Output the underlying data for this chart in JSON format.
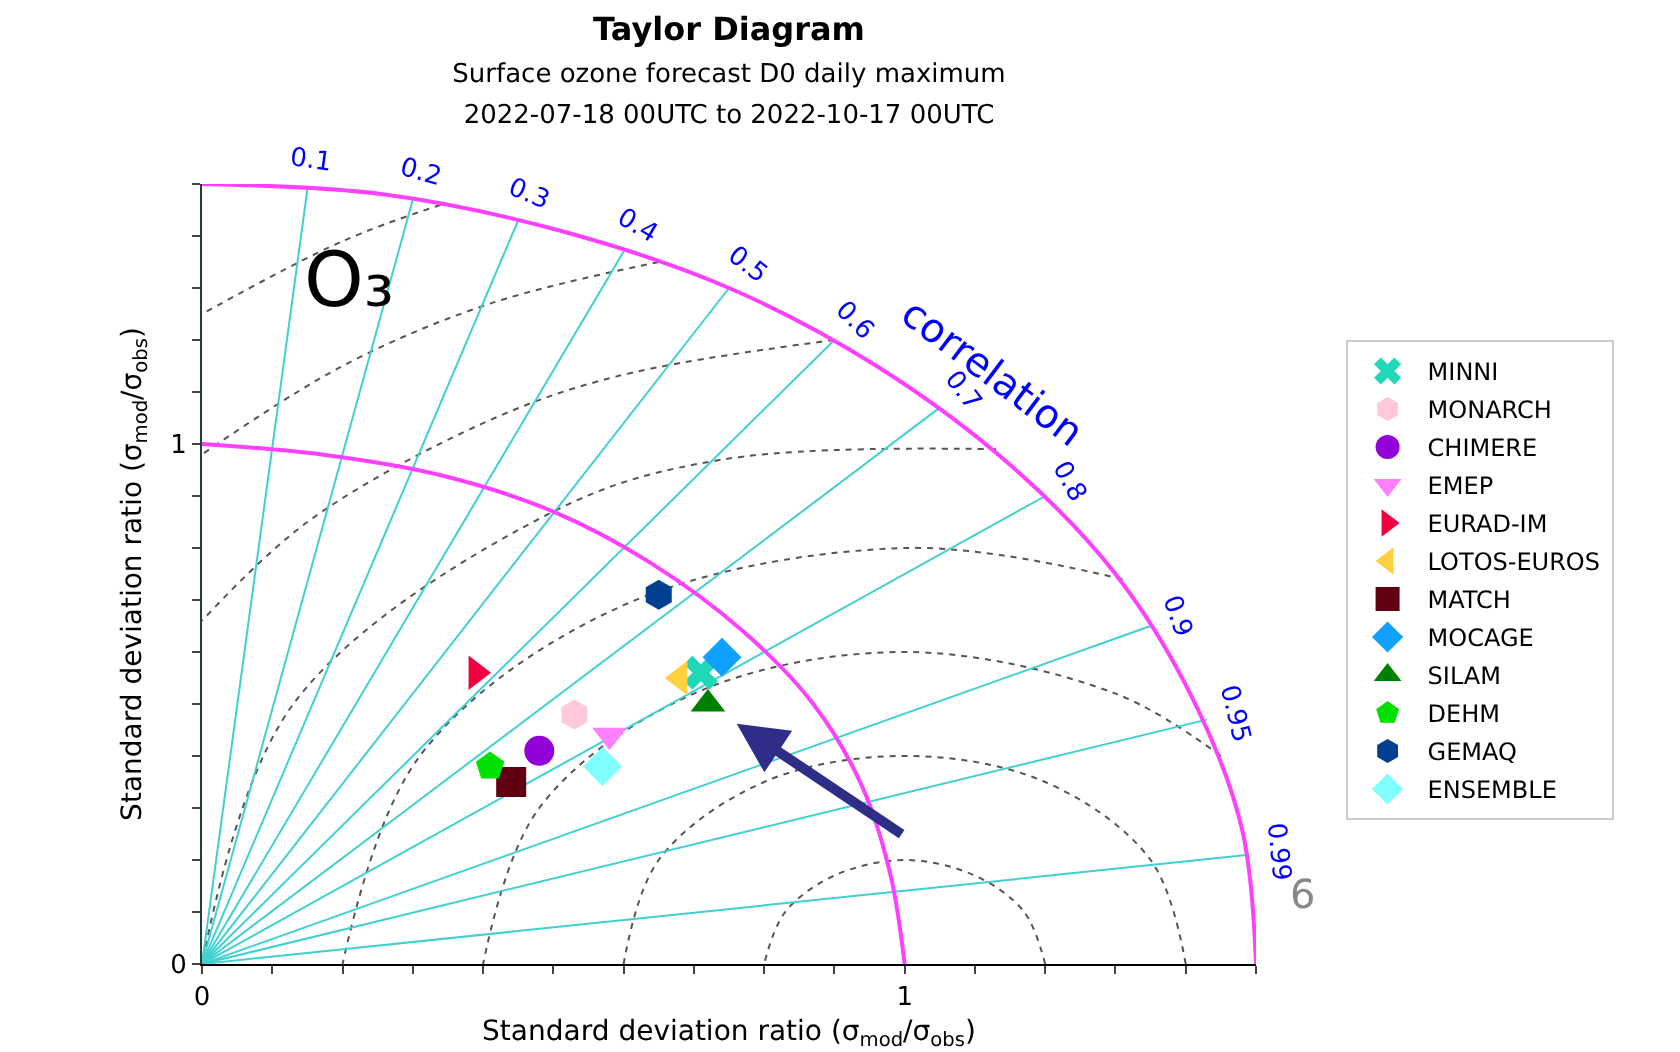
{
  "chart_data": {
    "type": "scatter",
    "title": "Taylor Diagram",
    "subtitle": "Surface ozone forecast D0 daily maximum\n2022-07-18 00UTC to 2022-10-17 00UTC",
    "xlabel": "Standard deviation ratio (σ$_{mod}$/σ$_{obs}$)",
    "ylabel": "Standard deviation ratio (σ$_{mod}$/σ$_{obs}$)",
    "xlim": [
      0,
      1.5
    ],
    "ylim": [
      0,
      1.5
    ],
    "xticks": [
      0,
      {
        "value": 0.1,
        "label": null
      },
      {
        "value": 0.2,
        "label": null
      },
      {
        "value": 0.3,
        "label": null
      },
      {
        "value": 0.4,
        "label": null
      },
      {
        "value": 0.5,
        "label": null
      },
      {
        "value": 0.6,
        "label": null
      },
      {
        "value": 0.7,
        "label": null
      },
      {
        "value": 0.8,
        "label": null
      },
      {
        "value": 0.9,
        "label": null
      },
      1,
      {
        "value": 1.1,
        "label": null
      },
      {
        "value": 1.2,
        "label": null
      },
      {
        "value": 1.3,
        "label": null
      },
      {
        "value": 1.4,
        "label": null
      },
      {
        "value": 1.5,
        "label": null
      }
    ],
    "yticks": [
      0,
      {
        "value": 0.1,
        "label": null
      },
      {
        "value": 0.2,
        "label": null
      },
      {
        "value": 0.3,
        "label": null
      },
      {
        "value": 0.4,
        "label": null
      },
      {
        "value": 0.5,
        "label": null
      },
      {
        "value": 0.6,
        "label": null
      },
      {
        "value": 0.7,
        "label": null
      },
      {
        "value": 0.8,
        "label": null
      },
      {
        "value": 0.9,
        "label": null
      },
      1,
      {
        "value": 1.1,
        "label": null
      },
      {
        "value": 1.2,
        "label": null
      },
      {
        "value": 1.3,
        "label": null
      },
      {
        "value": 1.4,
        "label": null
      },
      {
        "value": 1.5,
        "label": null
      }
    ],
    "legend": "right",
    "series": [
      {
        "type": "line",
        "color": "#555555",
        "line_style": "dotted",
        "x": [
          1.2,
          1.17,
          1.1,
          1,
          0.9,
          0.83,
          0.8
        ],
        "values": [
          0,
          0.1,
          0.17,
          0.2,
          0.17,
          0.1,
          0
        ]
      },
      {
        "type": "line",
        "color": "#555555",
        "line_style": "dotted",
        "x": [
          1.4,
          1.35,
          1.2,
          1,
          0.8,
          0.65,
          0.6
        ],
        "values": [
          0,
          0.2,
          0.35,
          0.4,
          0.35,
          0.2,
          0
        ]
      },
      {
        "type": "line",
        "color": "#555555",
        "line_style": "dotted",
        "x": [
          1.45,
          1.3,
          1,
          0.7,
          0.48,
          0.4
        ],
        "values": [
          0.4,
          0.52,
          0.6,
          0.52,
          0.3,
          0
        ]
      },
      {
        "type": "line",
        "color": "#555555",
        "line_style": "dotted",
        "x": [
          1.31,
          1,
          0.6,
          0.31,
          0.2
        ],
        "values": [
          0.74,
          0.8,
          0.69,
          0.4,
          0
        ]
      },
      {
        "type": "line",
        "color": "#555555",
        "line_style": "dotted",
        "x": [
          1.13,
          0.74,
          0.5,
          0.13,
          0
        ],
        "values": [
          0.99,
          0.97,
          0.87,
          0.5,
          0
        ]
      },
      {
        "type": "line",
        "color": "#555555",
        "line_style": "dotted",
        "x": [
          0.9,
          0.59,
          0.4,
          0.15,
          0
        ],
        "values": [
          1.2,
          1.13,
          1.04,
          0.85,
          0.66
        ]
      },
      {
        "type": "line",
        "color": "#555555",
        "line_style": "dotted",
        "x": [
          0.65,
          0.41,
          0.2,
          0
        ],
        "values": [
          1.35,
          1.27,
          1.15,
          0.98
        ]
      },
      {
        "type": "line",
        "color": "#555555",
        "line_style": "dotted",
        "x": [
          0.34,
          0.2,
          0
        ],
        "values": [
          1.46,
          1.39,
          1.25
        ]
      },
      {
        "type": "line",
        "color": "#40d0d0",
        "line_style": "solid",
        "x": [
          0,
          0.15
        ],
        "values": [
          0,
          1.49
        ]
      },
      {
        "type": "line",
        "color": "#40d0d0",
        "line_style": "solid",
        "x": [
          0,
          0.3
        ],
        "values": [
          0,
          1.47
        ]
      },
      {
        "type": "line",
        "color": "#40d0d0",
        "line_style": "solid",
        "x": [
          0,
          0.45
        ],
        "values": [
          0,
          1.43
        ]
      },
      {
        "type": "line",
        "color": "#40d0d0",
        "line_style": "solid",
        "x": [
          0,
          0.6
        ],
        "values": [
          0,
          1.37
        ]
      },
      {
        "type": "line",
        "color": "#40d0d0",
        "line_style": "solid",
        "x": [
          0,
          0.75
        ],
        "values": [
          0,
          1.3
        ]
      },
      {
        "type": "line",
        "color": "#40d0d0",
        "line_style": "solid",
        "x": [
          0,
          0.9
        ],
        "values": [
          0,
          1.2
        ]
      },
      {
        "type": "line",
        "color": "#40d0d0",
        "line_style": "solid",
        "x": [
          0,
          1.05
        ],
        "values": [
          0,
          1.07
        ]
      },
      {
        "type": "line",
        "color": "#40d0d0",
        "line_style": "solid",
        "x": [
          0,
          1.2
        ],
        "values": [
          0,
          0.9
        ]
      },
      {
        "type": "line",
        "color": "#40d0d0",
        "line_style": "solid",
        "x": [
          0,
          1.35
        ],
        "values": [
          0,
          0.65
        ]
      },
      {
        "type": "line",
        "color": "#40d0d0",
        "line_style": "solid",
        "x": [
          0,
          1.43
        ],
        "values": [
          0,
          0.47
        ]
      },
      {
        "type": "line",
        "color": "#40d0d0",
        "line_style": "solid",
        "x": [
          0,
          1.49
        ],
        "values": [
          0,
          0.21
        ]
      },
      {
        "type": "line",
        "color": "#ff40ff",
        "line_style": "solid",
        "x": [
          1,
          0.98,
          0.94,
          0.87,
          0.77,
          0.64,
          0.5,
          0.34,
          0.17,
          0
        ],
        "values": [
          0,
          0.17,
          0.34,
          0.5,
          0.64,
          0.77,
          0.87,
          0.94,
          0.98,
          1
        ]
      },
      {
        "type": "line",
        "color": "#ff40ff",
        "line_style": "solid",
        "x": [
          1.5,
          1.48,
          1.41,
          1.3,
          1.15,
          0.96,
          0.75,
          0.51,
          0.26,
          0
        ],
        "values": [
          0,
          0.26,
          0.51,
          0.75,
          0.96,
          1.15,
          1.3,
          1.41,
          1.48,
          1.5
        ]
      },
      {
        "name": "MINNI",
        "color": "#20d8b8",
        "marker": "cross",
        "x": [
          0.71
        ],
        "values": [
          0.56
        ]
      },
      {
        "name": "MONARCH",
        "color": "#ffc8dc",
        "x": [
          0.53
        ],
        "values": [
          0.48
        ]
      },
      {
        "name": "CHIMERE",
        "color": "#9400d8",
        "marker": "circle",
        "x": [
          0.48
        ],
        "values": [
          0.41
        ]
      },
      {
        "name": "EMEP",
        "color": "#ff80ff",
        "marker": "triangle-down",
        "x": [
          0.58
        ],
        "values": [
          0.44
        ]
      },
      {
        "name": "EURAD-IM",
        "color": "#f00040",
        "marker": "triangle-right",
        "x": [
          0.39
        ],
        "values": [
          0.56
        ]
      },
      {
        "name": "LOTOS-EUROS",
        "color": "#ffd040",
        "marker": "triangle-left",
        "x": [
          0.68
        ],
        "values": [
          0.55
        ]
      },
      {
        "name": "MATCH",
        "color": "#600010",
        "marker": "square",
        "x": [
          0.44
        ],
        "values": [
          0.35
        ]
      },
      {
        "name": "MOCAGE",
        "color": "#10a0ff",
        "marker": "diamond",
        "x": [
          0.74
        ],
        "values": [
          0.59
        ]
      },
      {
        "name": "SILAM",
        "color": "#008000",
        "marker": "triangle",
        "x": [
          0.72
        ],
        "values": [
          0.5
        ]
      },
      {
        "name": "DEHM",
        "color": "#00e000",
        "x": [
          0.41
        ],
        "values": [
          0.38
        ]
      },
      {
        "name": "GEMAQ",
        "color": "#004090",
        "x": [
          0.65
        ],
        "values": [
          0.71
        ]
      },
      {
        "name": "ENSEMBLE",
        "color": "#80ffff",
        "marker": "diamond",
        "x": [
          0.57
        ],
        "values": [
          0.38
        ]
      }
    ],
    "annotations": [
      "O₃",
      "correlation",
      "6",
      {
        "text": "0.1",
        "x": 0.15,
        "y": 1.49
      },
      {
        "text": "0.2",
        "x": 0.3,
        "y": 1.47
      },
      {
        "text": "0.3",
        "x": 0.45,
        "y": 1.43
      },
      {
        "text": "0.4",
        "x": 0.6,
        "y": 1.37
      },
      {
        "text": "0.5",
        "x": 0.75,
        "y": 1.3
      },
      {
        "text": "0.6",
        "x": 0.9,
        "y": 1.2
      },
      {
        "text": "0.7",
        "x": 1.05,
        "y": 1.07
      },
      {
        "text": "0.8",
        "x": 1.2,
        "y": 0.9
      },
      {
        "text": "0.9",
        "x": 1.35,
        "y": 0.65
      },
      {
        "text": "0.95",
        "x": 1.43,
        "y": 0.47
      },
      {
        "text": "0.99",
        "x": 1.49,
        "y": 0.21
      }
    ]
  }
}
